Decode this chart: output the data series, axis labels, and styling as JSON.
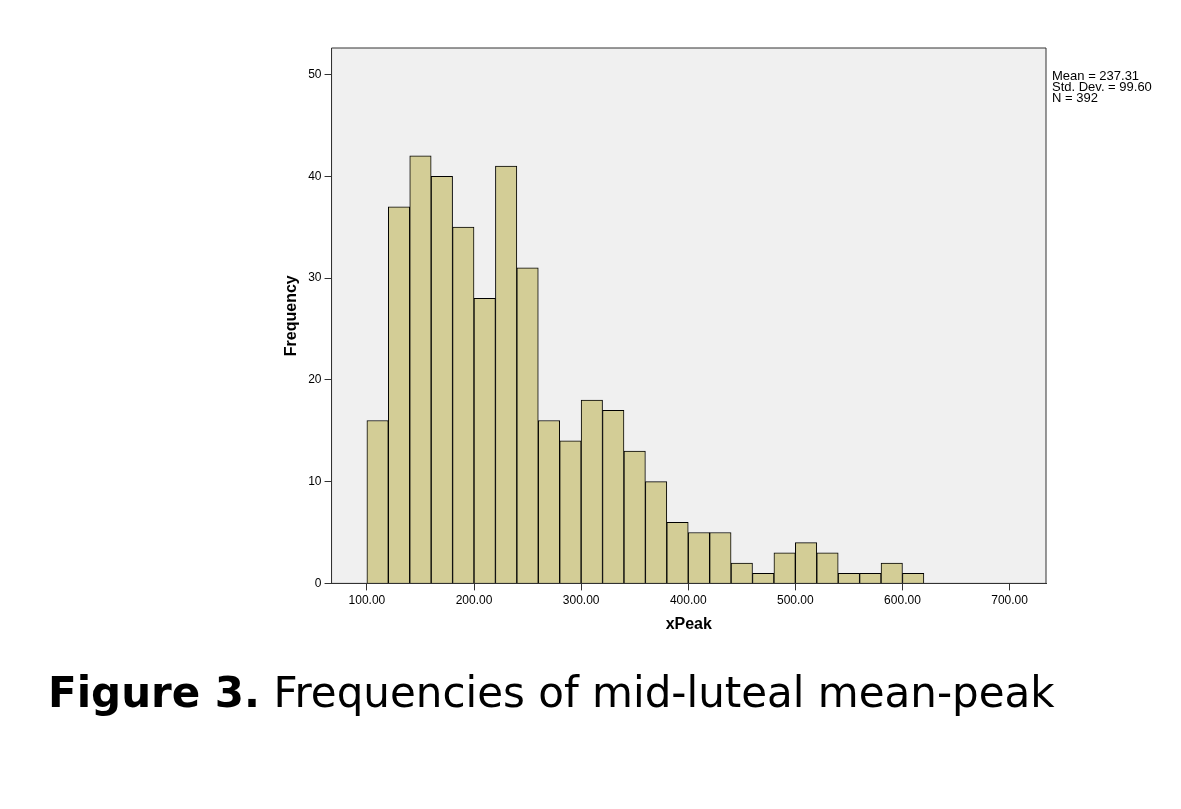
{
  "chart_data": {
    "type": "histogram",
    "xlabel": "xPeak",
    "ylabel": "Frequency",
    "color": "#d3cd96",
    "bins": [
      100,
      120,
      140,
      160,
      180,
      200,
      220,
      240,
      260,
      280,
      300,
      320,
      340,
      360,
      380,
      400,
      420,
      440,
      460,
      480,
      500,
      520,
      540,
      560,
      580,
      600,
      620
    ],
    "values": [
      16,
      37,
      42,
      40,
      35,
      28,
      41,
      31,
      16,
      14,
      18,
      17,
      13,
      10,
      6,
      5,
      5,
      2,
      1,
      3,
      4,
      3,
      1,
      1,
      2,
      1
    ],
    "xlim": [
      67,
      734
    ],
    "xticks": [
      {
        "value": 100,
        "label": "100.00"
      },
      {
        "value": 200,
        "label": "200.00"
      },
      {
        "value": 300,
        "label": "300.00"
      },
      {
        "value": 400,
        "label": "400.00"
      },
      {
        "value": 500,
        "label": "500.00"
      },
      {
        "value": 600,
        "label": "600.00"
      },
      {
        "value": 700,
        "label": "700.00"
      }
    ],
    "ylim": [
      0,
      52.6
    ],
    "yticks": [
      0,
      10,
      20,
      30,
      40,
      50
    ],
    "grid": false,
    "legend": false,
    "annotations": [
      "Mean = 237.31",
      "Std. Dev. = 99.60",
      "N = 392",
      "Figure 3. Frequencies of mid-luteal mean-peak"
    ]
  }
}
